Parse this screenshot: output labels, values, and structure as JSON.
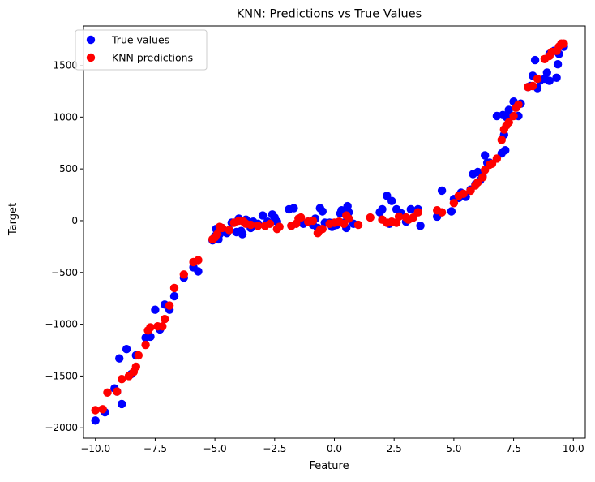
{
  "chart_data": {
    "type": "scatter",
    "title": "KNN: Predictions vs True Values",
    "xlabel": "Feature",
    "ylabel": "Target",
    "xlim": [
      -10.5,
      10.5
    ],
    "ylim": [
      -2100,
      1880
    ],
    "xticks": [
      {
        "value": -10.0,
        "label": "−10.0"
      },
      {
        "value": -7.5,
        "label": "−7.5"
      },
      {
        "value": -5.0,
        "label": "−5.0"
      },
      {
        "value": -2.5,
        "label": "−2.5"
      },
      {
        "value": 0.0,
        "label": "0.0"
      },
      {
        "value": 2.5,
        "label": "2.5"
      },
      {
        "value": 5.0,
        "label": "5.0"
      },
      {
        "value": 7.5,
        "label": "7.5"
      },
      {
        "value": 10.0,
        "label": "10.0"
      }
    ],
    "yticks": [
      {
        "value": -2000,
        "label": "−2000"
      },
      {
        "value": -1500,
        "label": "−1500"
      },
      {
        "value": -1000,
        "label": "−1000"
      },
      {
        "value": -500,
        "label": "−500"
      },
      {
        "value": 0,
        "label": "0"
      },
      {
        "value": 500,
        "label": "500"
      },
      {
        "value": 1000,
        "label": "1000"
      },
      {
        "value": 1500,
        "label": "1500"
      }
    ],
    "grid": false,
    "legend": "top-left",
    "series": [
      {
        "name": "True values",
        "color": "#0000ff",
        "points": [
          [
            -10.0,
            -1930
          ],
          [
            -9.6,
            -1850
          ],
          [
            -9.2,
            -1620
          ],
          [
            -9.1,
            -1650
          ],
          [
            -9.0,
            -1330
          ],
          [
            -8.9,
            -1770
          ],
          [
            -8.7,
            -1240
          ],
          [
            -8.5,
            -1480
          ],
          [
            -8.3,
            -1300
          ],
          [
            -7.9,
            -1130
          ],
          [
            -7.7,
            -1120
          ],
          [
            -7.5,
            -860
          ],
          [
            -7.3,
            -1050
          ],
          [
            -7.1,
            -810
          ],
          [
            -6.9,
            -860
          ],
          [
            -6.7,
            -730
          ],
          [
            -6.3,
            -550
          ],
          [
            -5.9,
            -450
          ],
          [
            -5.7,
            -490
          ],
          [
            -5.1,
            -190
          ],
          [
            -5.0,
            -150
          ],
          [
            -4.95,
            -80
          ],
          [
            -4.85,
            -180
          ],
          [
            -4.8,
            -130
          ],
          [
            -4.7,
            -70
          ],
          [
            -4.5,
            -120
          ],
          [
            -4.3,
            -20
          ],
          [
            -4.1,
            -110
          ],
          [
            -4.0,
            20
          ],
          [
            -3.9,
            -100
          ],
          [
            -3.85,
            -130
          ],
          [
            -3.7,
            10
          ],
          [
            -3.5,
            -70
          ],
          [
            -3.4,
            -10
          ],
          [
            -3.2,
            -30
          ],
          [
            -3.0,
            50
          ],
          [
            -2.8,
            -10
          ],
          [
            -2.6,
            60
          ],
          [
            -2.5,
            30
          ],
          [
            -2.4,
            -10
          ],
          [
            -1.9,
            110
          ],
          [
            -1.8,
            -50
          ],
          [
            -1.7,
            120
          ],
          [
            -1.5,
            -10
          ],
          [
            -1.3,
            -30
          ],
          [
            -1.1,
            -10
          ],
          [
            -0.9,
            -40
          ],
          [
            -0.8,
            20
          ],
          [
            -0.7,
            -70
          ],
          [
            -0.6,
            120
          ],
          [
            -0.5,
            90
          ],
          [
            -0.4,
            -20
          ],
          [
            -0.2,
            -20
          ],
          [
            -0.1,
            -60
          ],
          [
            0.1,
            -40
          ],
          [
            0.25,
            70
          ],
          [
            0.3,
            100
          ],
          [
            0.4,
            -20
          ],
          [
            0.5,
            -70
          ],
          [
            0.55,
            140
          ],
          [
            0.6,
            80
          ],
          [
            0.8,
            -30
          ],
          [
            1.9,
            80
          ],
          [
            2.0,
            110
          ],
          [
            2.2,
            240
          ],
          [
            2.3,
            -30
          ],
          [
            2.4,
            190
          ],
          [
            2.6,
            110
          ],
          [
            2.8,
            70
          ],
          [
            3.0,
            -10
          ],
          [
            3.2,
            110
          ],
          [
            3.5,
            110
          ],
          [
            3.6,
            -50
          ],
          [
            4.3,
            40
          ],
          [
            4.5,
            290
          ],
          [
            4.9,
            90
          ],
          [
            5.0,
            210
          ],
          [
            5.2,
            220
          ],
          [
            5.3,
            270
          ],
          [
            5.5,
            230
          ],
          [
            5.7,
            300
          ],
          [
            5.8,
            450
          ],
          [
            5.9,
            350
          ],
          [
            6.0,
            470
          ],
          [
            6.1,
            390
          ],
          [
            6.2,
            430
          ],
          [
            6.3,
            630
          ],
          [
            6.4,
            560
          ],
          [
            6.5,
            560
          ],
          [
            6.8,
            1010
          ],
          [
            7.0,
            650
          ],
          [
            7.05,
            1020
          ],
          [
            7.1,
            830
          ],
          [
            7.15,
            680
          ],
          [
            7.2,
            1000
          ],
          [
            7.3,
            1070
          ],
          [
            7.5,
            1150
          ],
          [
            7.7,
            1010
          ],
          [
            7.8,
            1130
          ],
          [
            8.1,
            1290
          ],
          [
            8.2,
            1300
          ],
          [
            8.3,
            1400
          ],
          [
            8.4,
            1550
          ],
          [
            8.5,
            1280
          ],
          [
            8.6,
            1350
          ],
          [
            8.8,
            1370
          ],
          [
            8.9,
            1430
          ],
          [
            9.0,
            1350
          ],
          [
            9.0,
            1610
          ],
          [
            9.2,
            1640
          ],
          [
            9.3,
            1380
          ],
          [
            9.35,
            1510
          ],
          [
            9.4,
            1610
          ],
          [
            9.5,
            1690
          ],
          [
            9.6,
            1680
          ]
        ]
      },
      {
        "name": "KNN predictions",
        "color": "#ff0000",
        "points": [
          [
            -10.0,
            -1830
          ],
          [
            -9.7,
            -1820
          ],
          [
            -9.5,
            -1660
          ],
          [
            -9.1,
            -1650
          ],
          [
            -8.9,
            -1530
          ],
          [
            -8.6,
            -1500
          ],
          [
            -8.4,
            -1460
          ],
          [
            -8.3,
            -1410
          ],
          [
            -8.2,
            -1300
          ],
          [
            -7.9,
            -1200
          ],
          [
            -7.8,
            -1060
          ],
          [
            -7.7,
            -1030
          ],
          [
            -7.4,
            -1020
          ],
          [
            -7.2,
            -1020
          ],
          [
            -7.1,
            -950
          ],
          [
            -6.9,
            -820
          ],
          [
            -6.7,
            -650
          ],
          [
            -6.3,
            -520
          ],
          [
            -5.9,
            -400
          ],
          [
            -5.7,
            -380
          ],
          [
            -5.1,
            -180
          ],
          [
            -5.0,
            -160
          ],
          [
            -4.9,
            -130
          ],
          [
            -4.8,
            -60
          ],
          [
            -4.7,
            -70
          ],
          [
            -4.4,
            -90
          ],
          [
            -4.2,
            -20
          ],
          [
            -4.0,
            0
          ],
          [
            -3.8,
            -10
          ],
          [
            -3.7,
            -30
          ],
          [
            -3.5,
            -40
          ],
          [
            -3.2,
            -50
          ],
          [
            -2.9,
            -50
          ],
          [
            -2.7,
            -30
          ],
          [
            -2.4,
            -80
          ],
          [
            -2.3,
            -60
          ],
          [
            -1.8,
            -50
          ],
          [
            -1.6,
            -30
          ],
          [
            -1.5,
            20
          ],
          [
            -1.4,
            30
          ],
          [
            -1.1,
            -10
          ],
          [
            -0.9,
            0
          ],
          [
            -0.7,
            -120
          ],
          [
            -0.6,
            -90
          ],
          [
            -0.5,
            -80
          ],
          [
            -0.2,
            -30
          ],
          [
            0.0,
            -20
          ],
          [
            0.2,
            -10
          ],
          [
            0.4,
            -30
          ],
          [
            0.5,
            50
          ],
          [
            0.6,
            20
          ],
          [
            1.0,
            -40
          ],
          [
            1.5,
            30
          ],
          [
            2.0,
            10
          ],
          [
            2.2,
            -20
          ],
          [
            2.4,
            -10
          ],
          [
            2.6,
            -20
          ],
          [
            2.7,
            40
          ],
          [
            3.0,
            30
          ],
          [
            3.1,
            10
          ],
          [
            3.3,
            30
          ],
          [
            3.5,
            80
          ],
          [
            4.3,
            100
          ],
          [
            4.5,
            80
          ],
          [
            5.0,
            170
          ],
          [
            5.2,
            240
          ],
          [
            5.4,
            260
          ],
          [
            5.7,
            290
          ],
          [
            5.9,
            340
          ],
          [
            6.0,
            370
          ],
          [
            6.2,
            420
          ],
          [
            6.3,
            490
          ],
          [
            6.5,
            540
          ],
          [
            6.6,
            550
          ],
          [
            6.8,
            600
          ],
          [
            7.0,
            780
          ],
          [
            7.1,
            880
          ],
          [
            7.2,
            920
          ],
          [
            7.3,
            950
          ],
          [
            7.5,
            1010
          ],
          [
            7.6,
            1090
          ],
          [
            7.7,
            1120
          ],
          [
            8.1,
            1290
          ],
          [
            8.3,
            1300
          ],
          [
            8.5,
            1370
          ],
          [
            8.8,
            1560
          ],
          [
            9.0,
            1590
          ],
          [
            9.1,
            1630
          ],
          [
            9.3,
            1640
          ],
          [
            9.4,
            1680
          ],
          [
            9.5,
            1710
          ],
          [
            9.6,
            1710
          ]
        ]
      }
    ]
  }
}
